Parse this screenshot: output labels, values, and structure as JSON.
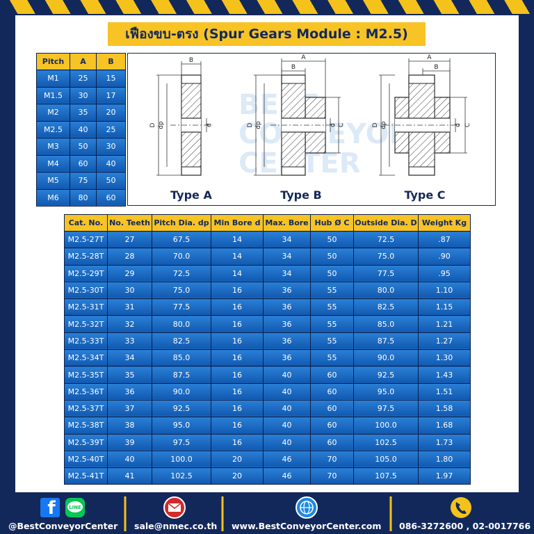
{
  "header": {
    "title": "เฟืองขบ-ตรง (Spur Gears Module : M2.5)"
  },
  "pitch_table": {
    "columns": [
      "Pitch",
      "A",
      "B"
    ],
    "rows": [
      [
        "M1",
        "25",
        "15"
      ],
      [
        "M1.5",
        "30",
        "17"
      ],
      [
        "M2",
        "35",
        "20"
      ],
      [
        "M2.5",
        "40",
        "25"
      ],
      [
        "M3",
        "50",
        "30"
      ],
      [
        "M4",
        "60",
        "40"
      ],
      [
        "M5",
        "75",
        "50"
      ],
      [
        "M6",
        "80",
        "60"
      ]
    ]
  },
  "diagrams": {
    "watermark": [
      "BEST",
      "CONVEYOR",
      "CENTER"
    ],
    "types": [
      {
        "label": "Type A",
        "dims": [
          "B",
          "D",
          "dp",
          "d"
        ]
      },
      {
        "label": "Type B",
        "dims": [
          "A",
          "B",
          "D",
          "dp",
          "d",
          "C"
        ]
      },
      {
        "label": "Type C",
        "dims": [
          "A",
          "B",
          "D",
          "dp",
          "d",
          "C"
        ]
      }
    ]
  },
  "spec_table": {
    "columns": [
      "Cat. No.",
      "No. Teeth",
      "Pitch Dia. dp",
      "Min Bore d",
      "Max. Bore",
      "Hub Ø C",
      "Outside Dia. D",
      "Weight Kg"
    ],
    "rows": [
      [
        "M2.5-27T",
        "27",
        "67.5",
        "14",
        "34",
        "50",
        "72.5",
        ".87"
      ],
      [
        "M2.5-28T",
        "28",
        "70.0",
        "14",
        "34",
        "50",
        "75.0",
        ".90"
      ],
      [
        "M2.5-29T",
        "29",
        "72.5",
        "14",
        "34",
        "50",
        "77.5",
        ".95"
      ],
      [
        "M2.5-30T",
        "30",
        "75.0",
        "16",
        "36",
        "55",
        "80.0",
        "1.10"
      ],
      [
        "M2.5-31T",
        "31",
        "77.5",
        "16",
        "36",
        "55",
        "82.5",
        "1.15"
      ],
      [
        "M2.5-32T",
        "32",
        "80.0",
        "16",
        "36",
        "55",
        "85.0",
        "1.21"
      ],
      [
        "M2.5-33T",
        "33",
        "82.5",
        "16",
        "36",
        "55",
        "87.5",
        "1.27"
      ],
      [
        "M2.5-34T",
        "34",
        "85.0",
        "16",
        "36",
        "55",
        "90.0",
        "1.30"
      ],
      [
        "M2.5-35T",
        "35",
        "87.5",
        "16",
        "40",
        "60",
        "92.5",
        "1.43"
      ],
      [
        "M2.5-36T",
        "36",
        "90.0",
        "16",
        "40",
        "60",
        "95.0",
        "1.51"
      ],
      [
        "M2.5-37T",
        "37",
        "92.5",
        "16",
        "40",
        "60",
        "97.5",
        "1.58"
      ],
      [
        "M2.5-38T",
        "38",
        "95.0",
        "16",
        "40",
        "60",
        "100.0",
        "1.68"
      ],
      [
        "M2.5-39T",
        "39",
        "97.5",
        "16",
        "40",
        "60",
        "102.5",
        "1.73"
      ],
      [
        "M2.5-40T",
        "40",
        "100.0",
        "20",
        "46",
        "70",
        "105.0",
        "1.80"
      ],
      [
        "M2.5-41T",
        "41",
        "102.5",
        "20",
        "46",
        "70",
        "107.5",
        "1.97"
      ]
    ]
  },
  "footer": {
    "facebook": "@BestConveyorCenter",
    "line_icon": "LINE",
    "email": "sale@nmec.co.th",
    "website": "www.BestConveyorCenter.com",
    "phone": "086-3272600 , 02-0017766"
  }
}
